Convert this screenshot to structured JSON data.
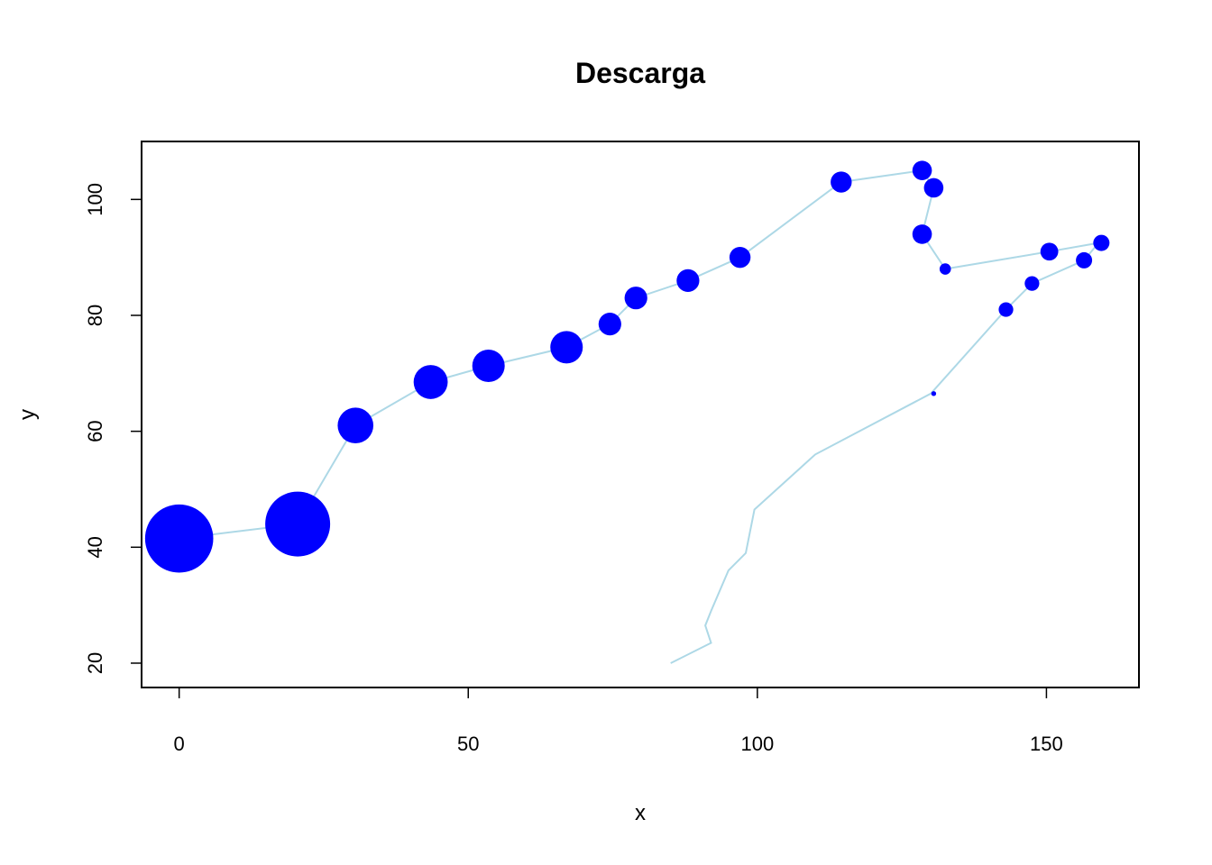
{
  "chart_data": {
    "type": "scatter",
    "title": "Descarga",
    "xlabel": "x",
    "ylabel": "y",
    "xlim": [
      -6.5,
      166
    ],
    "ylim": [
      15.8,
      110
    ],
    "xticks": [
      0,
      50,
      100,
      150
    ],
    "yticks": [
      20,
      40,
      60,
      80,
      100
    ],
    "grid": false,
    "colors": {
      "points": "#0000ff",
      "path": "#add8e6",
      "frame": "#000000"
    },
    "path": {
      "x": [
        85,
        92,
        91,
        92,
        95,
        98,
        99.5,
        110,
        130,
        143,
        147.5,
        156.5,
        159,
        150.5,
        132.5,
        128.5,
        130.5,
        128.5,
        114.5,
        97,
        88,
        79,
        74.5,
        67,
        53.5,
        43.5,
        30.5,
        20.5,
        0
      ],
      "y": [
        20,
        23.5,
        26.5,
        29,
        36,
        39,
        46.5,
        56,
        66.5,
        81,
        85.5,
        89.5,
        92.5,
        91,
        88,
        94,
        102,
        105,
        103,
        90,
        86,
        83,
        78.5,
        74.5,
        71.3,
        68.5,
        61,
        44,
        41.5
      ]
    },
    "points": {
      "x": [
        130.5,
        143,
        147.5,
        156.5,
        159.5,
        150.5,
        132.5,
        128.5,
        130.5,
        128.5,
        114.5,
        97,
        88,
        79,
        74.5,
        67,
        53.5,
        43.5,
        30.5,
        20.5,
        0
      ],
      "y": [
        66.5,
        81,
        85.5,
        89.5,
        92.5,
        91,
        88,
        94,
        102,
        105,
        103,
        90,
        86,
        83,
        78.5,
        74.5,
        71.3,
        68.5,
        61,
        44,
        41.5
      ],
      "size": [
        0.3,
        0.9,
        0.9,
        1.0,
        1.0,
        1.1,
        0.7,
        1.2,
        1.2,
        1.2,
        1.3,
        1.3,
        1.4,
        1.4,
        1.4,
        2.0,
        2.0,
        2.1,
        2.2,
        4.0,
        4.2
      ]
    }
  }
}
